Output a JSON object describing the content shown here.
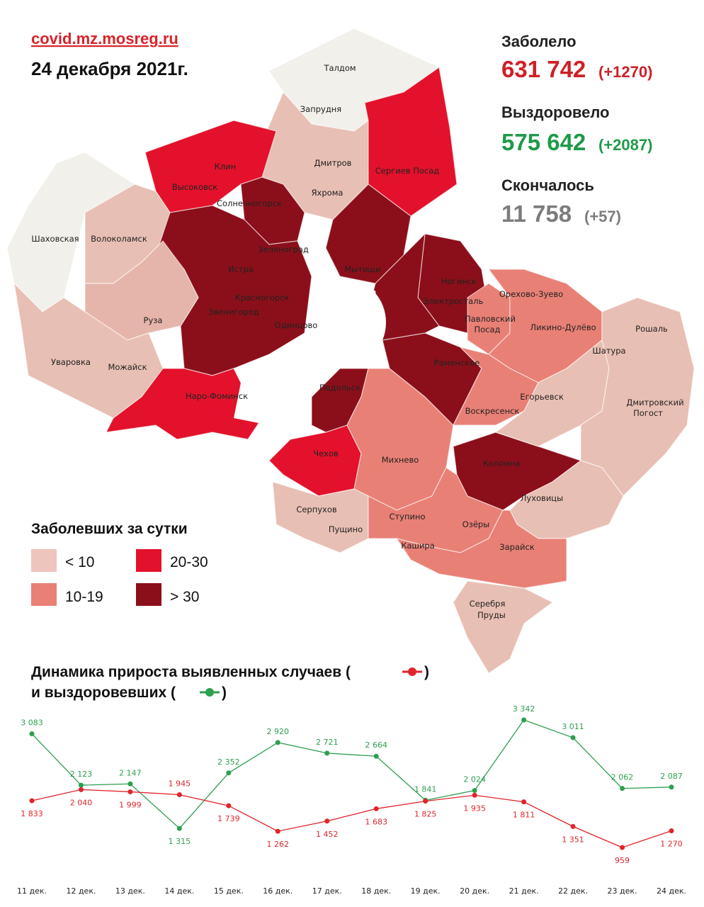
{
  "header": {
    "url": "covid.mz.mosreg.ru",
    "date": "24 декабря 2021г."
  },
  "stats": {
    "infected": {
      "label": "Заболело",
      "value": "631 742",
      "delta": "(+1270)"
    },
    "recovered": {
      "label": "Выздоровело",
      "value": "575 642",
      "delta": "(+2087)"
    },
    "died": {
      "label": "Скончалось",
      "value": "11 758",
      "delta": "(+57)"
    }
  },
  "legend": {
    "title": "Заболевших за сутки",
    "items": [
      "< 10",
      "10-19",
      "20-30",
      "> 30"
    ]
  },
  "map": {
    "labels": [
      "Талдом",
      "Запрудня",
      "Дмитров",
      "Яхрома",
      "Сергиев Посад",
      "Клин",
      "Высоковск",
      "Солнечногорск",
      "Зеленоград",
      "Истра",
      "Мытищи",
      "Шаховская",
      "Волоколамск",
      "Красногорск",
      "Звенигород",
      "Одинцово",
      "Руза",
      "Уваровка",
      "Можайск",
      "Наро-Фоминск",
      "Ногинск",
      "Электросталь",
      "Орехово-Зуево",
      "Павловский",
      "Посад",
      "Ликино-Дулёво",
      "Рошаль",
      "Шатура",
      "Раменское",
      "Подольск",
      "Егорьевск",
      "Воскресенск",
      "Дмитровский",
      "Погост",
      "Чехов",
      "Михнево",
      "Коломна",
      "Луховицы",
      "Серпухов",
      "Ступино",
      "Пущино",
      "Озёры",
      "Кашира",
      "Зарайск",
      "Серебря",
      "Пруды"
    ]
  },
  "chart_data": {
    "type": "line",
    "title": [
      "Динамика прироста выявленных случаев (",
      ")"
    ],
    "subtitle": [
      "и выздоровевших (",
      ")"
    ],
    "categories": [
      "11 дек.",
      "12 дек.",
      "13 дек.",
      "14 дек.",
      "15 дек.",
      "16 дек.",
      "17 дек.",
      "18 дек.",
      "19 дек.",
      "20 дек.",
      "21 дек.",
      "22 дек.",
      "23 дек.",
      "24 дек."
    ],
    "series": [
      {
        "color": "#2e9e4f",
        "values": [
          3083,
          2123,
          2147,
          1315,
          2352,
          2920,
          2721,
          2664,
          1841,
          2024,
          3342,
          3011,
          2062,
          2087
        ],
        "value_labels": [
          "3 083",
          "2 123",
          "2 147",
          "1 315",
          "2 352",
          "2 920",
          "2 721",
          "2 664",
          "1 841",
          "2 024",
          "3 342",
          "3 011",
          "2 062",
          "2 087"
        ]
      },
      {
        "color": "#e0242c",
        "values": [
          1833,
          2040,
          1999,
          1945,
          1739,
          1262,
          1452,
          1683,
          1825,
          1935,
          1811,
          1351,
          959,
          1270
        ],
        "value_labels": [
          "1 833",
          "2 040",
          "1 999",
          "1 945",
          "1 739",
          "1 262",
          "1 452",
          "1 683",
          "1 825",
          "1 935",
          "1 811",
          "1 351",
          "959",
          "1 270"
        ]
      }
    ]
  }
}
